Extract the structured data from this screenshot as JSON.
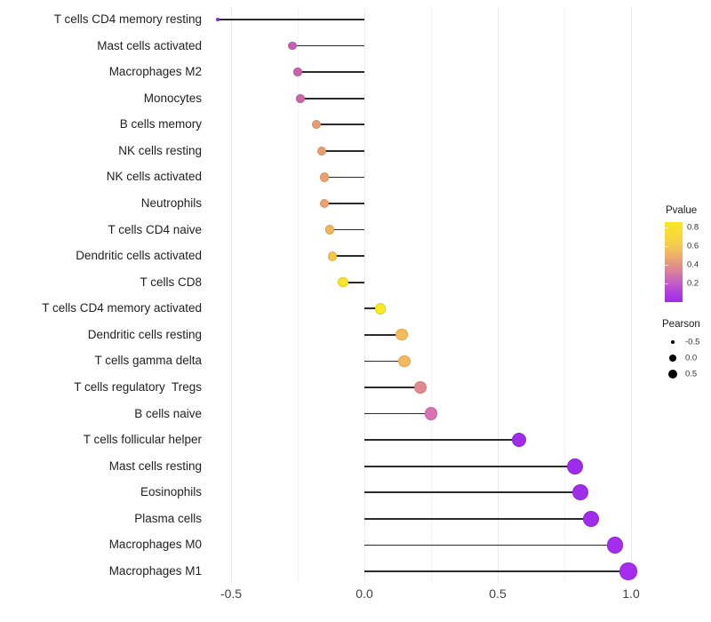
{
  "chart_data": {
    "type": "lollipop",
    "orientation": "horizontal",
    "title": "",
    "xlabel": "",
    "ylabel": "",
    "baseline": 0.0,
    "x_axis": {
      "range": [
        -0.59,
        1.05
      ],
      "major_ticks": [
        -0.5,
        0.0,
        0.5,
        1.0
      ],
      "major_tick_labels": [
        "-0.5",
        "0.0",
        "0.5",
        "1.0"
      ],
      "minor_ticks": [
        -0.25,
        0.25,
        0.75
      ]
    },
    "value_encoding": {
      "x_and_size": "Pearson correlation",
      "color": "Pvalue"
    },
    "rows": [
      {
        "label": "T cells CD4 memory resting",
        "pearson": -0.55,
        "pvalue": 0.05,
        "color": "#8E2BE2"
      },
      {
        "label": "Mast cells activated",
        "pearson": -0.27,
        "pvalue": 0.25,
        "color": "#C75FB2"
      },
      {
        "label": "Macrophages M2",
        "pearson": -0.25,
        "pvalue": 0.27,
        "color": "#C962AE"
      },
      {
        "label": "Monocytes",
        "pearson": -0.24,
        "pvalue": 0.28,
        "color": "#CB66AA"
      },
      {
        "label": "B cells memory",
        "pearson": -0.18,
        "pvalue": 0.45,
        "color": "#E89B74"
      },
      {
        "label": "NK cells resting",
        "pearson": -0.16,
        "pvalue": 0.46,
        "color": "#EA9E6F"
      },
      {
        "label": "NK cells activated",
        "pearson": -0.15,
        "pvalue": 0.47,
        "color": "#EBA169"
      },
      {
        "label": "Neutrophils",
        "pearson": -0.15,
        "pvalue": 0.48,
        "color": "#ECA366"
      },
      {
        "label": "T cells CD4 naive",
        "pearson": -0.13,
        "pvalue": 0.55,
        "color": "#F1B558"
      },
      {
        "label": "Dendritic cells activated",
        "pearson": -0.12,
        "pvalue": 0.6,
        "color": "#F4C64C"
      },
      {
        "label": "T cells CD8",
        "pearson": -0.08,
        "pvalue": 0.75,
        "color": "#F6E428"
      },
      {
        "label": "T cells CD4 memory activated",
        "pearson": 0.06,
        "pvalue": 0.85,
        "color": "#F8EA21"
      },
      {
        "label": "Dendritic cells resting",
        "pearson": 0.14,
        "pvalue": 0.58,
        "color": "#F3BC58"
      },
      {
        "label": "T cells gamma delta",
        "pearson": 0.15,
        "pvalue": 0.57,
        "color": "#F3BA5B"
      },
      {
        "label": "T cells regulatory  Tregs",
        "pearson": 0.21,
        "pvalue": 0.42,
        "color": "#E18A8E"
      },
      {
        "label": "B cells naive",
        "pearson": 0.25,
        "pvalue": 0.32,
        "color": "#D873B2"
      },
      {
        "label": "T cells follicular helper",
        "pearson": 0.58,
        "pvalue": 0.05,
        "color": "#A02BE8"
      },
      {
        "label": "Mast cells resting",
        "pearson": 0.79,
        "pvalue": 0.03,
        "color": "#9F2BEA"
      },
      {
        "label": "Eosinophils",
        "pearson": 0.81,
        "pvalue": 0.02,
        "color": "#A02CEC"
      },
      {
        "label": "Plasma cells",
        "pearson": 0.85,
        "pvalue": 0.02,
        "color": "#A12CEC"
      },
      {
        "label": "Macrophages M0",
        "pearson": 0.94,
        "pvalue": 0.01,
        "color": "#A42DEE"
      },
      {
        "label": "Macrophages M1",
        "pearson": 0.99,
        "pvalue": 0.01,
        "color": "#A62DF0"
      }
    ],
    "legend": {
      "pvalue": {
        "title": "Pvalue",
        "bar_range": [
          0.86,
          0.0
        ],
        "tick_labels": [
          "0.8",
          "0.6",
          "0.4",
          "0.2"
        ],
        "tick_values": [
          0.8,
          0.6,
          0.4,
          0.2
        ],
        "gradient_stops": [
          {
            "at": 0,
            "color": "#F9E622"
          },
          {
            "at": 18,
            "color": "#F7D83B"
          },
          {
            "at": 30,
            "color": "#F4C853"
          },
          {
            "at": 42,
            "color": "#EDAF6B"
          },
          {
            "at": 53,
            "color": "#E39383"
          },
          {
            "at": 65,
            "color": "#D477A5"
          },
          {
            "at": 77,
            "color": "#C25AC8"
          },
          {
            "at": 89,
            "color": "#AF3CE2"
          },
          {
            "at": 100,
            "color": "#A02BEC"
          }
        ]
      },
      "pearson": {
        "title": "Pearson",
        "items": [
          {
            "label": "-0.5",
            "value": -0.5
          },
          {
            "label": "0.0",
            "value": 0.0
          },
          {
            "label": "0.5",
            "value": 0.5
          }
        ]
      }
    },
    "colors": {
      "stick": "#2b2b2b",
      "grid_major": "#e9e9e9",
      "grid_minor": "#f4f4f4",
      "axis_text": "#404040",
      "category_text": "#1f1f1f"
    }
  }
}
